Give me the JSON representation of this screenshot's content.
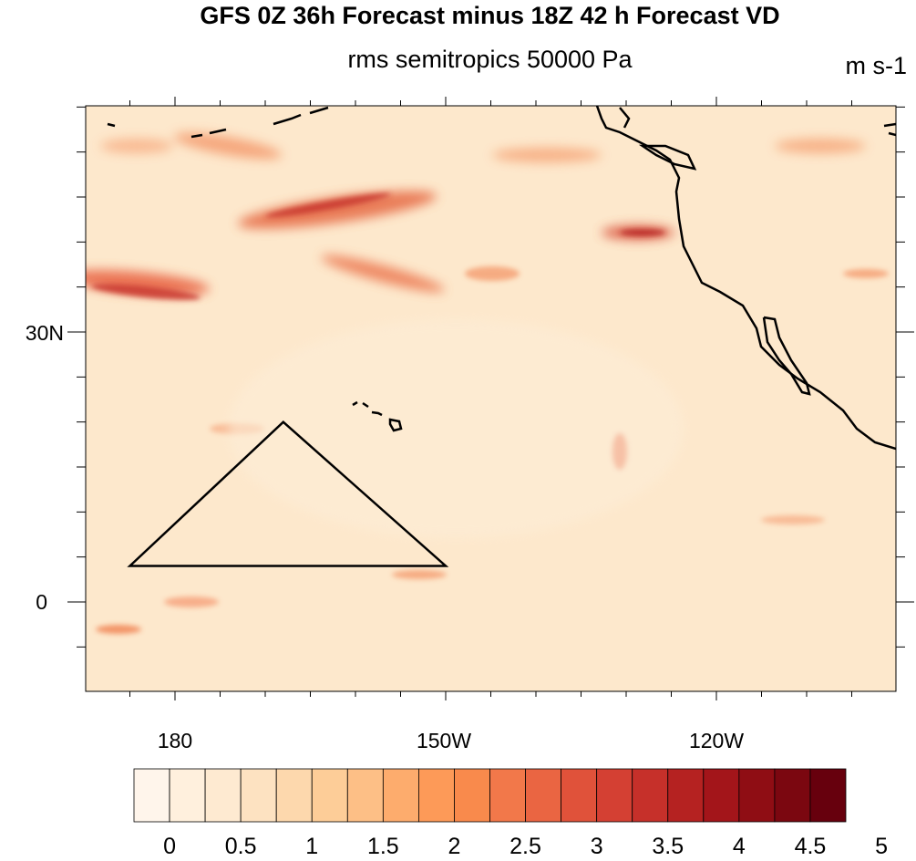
{
  "header": {
    "title": "GFS 0Z 36h Forecast minus 18Z 42 h Forecast VD",
    "subtitle": "rms semitropics 50000 Pa",
    "units": "m s-1"
  },
  "axes": {
    "y_ticks": [
      {
        "value": 30,
        "label": "30N"
      },
      {
        "value": 0,
        "label": "0"
      }
    ],
    "x_ticks": [
      {
        "value": 180,
        "label": "180"
      },
      {
        "value": 210,
        "label": "150W"
      },
      {
        "value": 240,
        "label": "120W"
      }
    ]
  },
  "colorbar": {
    "labels": [
      "0",
      "0.5",
      "1",
      "1.5",
      "2",
      "2.5",
      "3",
      "3.5",
      "4",
      "4.5",
      "5"
    ],
    "colors": [
      "#fff5eb",
      "#fff0dd",
      "#feead1",
      "#fde2c1",
      "#fdd8ad",
      "#fdcd98",
      "#fdbf86",
      "#fdac6d",
      "#fd9a58",
      "#f98a4c",
      "#f2784a",
      "#ea6542",
      "#e0523a",
      "#d44033",
      "#c6302a",
      "#b52221",
      "#a3151a",
      "#8f0d14",
      "#7b0710",
      "#67000d"
    ]
  },
  "map": {
    "background_color": "#fde8cc",
    "triangle": [
      [
        175,
        4
      ],
      [
        192,
        20
      ],
      [
        210,
        4
      ]
    ]
  }
}
